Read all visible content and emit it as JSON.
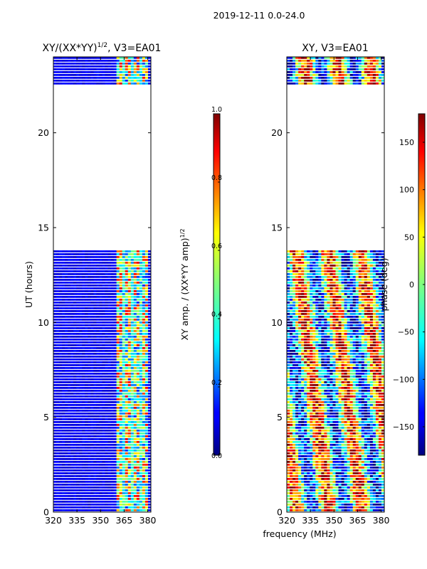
{
  "suptitle": "2019-12-11 0.0-24.0",
  "shared_xlabel": "frequency (MHz)",
  "colors": {
    "jet_low": "#00007f",
    "jet_blue": "#0000ff",
    "jet_cyan": "#00ffff",
    "jet_yellow": "#ffff00",
    "jet_red": "#ff0000",
    "jet_high": "#7f0000",
    "gap": "#ffffff"
  },
  "chart_data": [
    {
      "type": "heatmap",
      "title": "XY/(XX*YY)^{1/2}, V3=EA01",
      "title_main": "XY/(XX*YY)",
      "title_sup": "1/2",
      "title_tail": ", V3=EA01",
      "xlabel": "frequency (MHz)",
      "ylabel": "UT (hours)",
      "xlim": [
        320,
        382
      ],
      "ylim": [
        0,
        24
      ],
      "xticks": [
        "320",
        "335",
        "350",
        "365",
        "380"
      ],
      "xtick_values": [
        320,
        335,
        350,
        365,
        380
      ],
      "yticks": [
        "0",
        "5",
        "10",
        "15",
        "20"
      ],
      "ytick_values": [
        0,
        5,
        10,
        15,
        20
      ],
      "data_gap_hours": [
        13.8,
        22.4
      ],
      "active_band_mhz": [
        360,
        380
      ],
      "colorbar": {
        "label_main": "XY amp. / (XX*YY amp)",
        "label_sup": "1/2",
        "range": [
          0.0,
          1.0
        ],
        "ticks": [
          "0.0",
          "0.2",
          "0.4",
          "0.6",
          "0.8",
          "1.0"
        ],
        "tick_values": [
          0.0,
          0.2,
          0.4,
          0.6,
          0.8,
          1.0
        ]
      }
    },
    {
      "type": "heatmap",
      "title": "XY, V3=EA01",
      "xlabel": "frequency (MHz)",
      "ylabel": "",
      "xlim": [
        320,
        382
      ],
      "ylim": [
        0,
        24
      ],
      "xticks": [
        "320",
        "335",
        "350",
        "365",
        "380"
      ],
      "xtick_values": [
        320,
        335,
        350,
        365,
        380
      ],
      "yticks": [
        "0",
        "5",
        "10",
        "15",
        "20"
      ],
      "ytick_values": [
        0,
        5,
        10,
        15,
        20
      ],
      "data_gap_hours": [
        13.8,
        22.4
      ],
      "colorbar": {
        "label": "phase (deg)",
        "range": [
          -180,
          180
        ],
        "ticks": [
          "−150",
          "−100",
          "−50",
          "0",
          "50",
          "100",
          "150"
        ],
        "tick_values": [
          -150,
          -100,
          -50,
          0,
          50,
          100,
          150
        ]
      }
    }
  ]
}
